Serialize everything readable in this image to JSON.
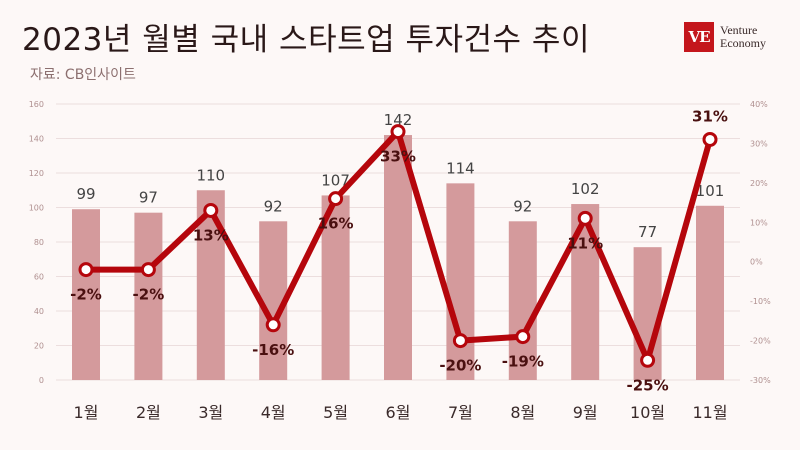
{
  "header": {
    "title": "2023년 월별 국내 스타트업 투자건수 추이",
    "source": "자료: CB인사이트"
  },
  "logo": {
    "mark": "VE",
    "line1": "Venture",
    "line2": "Economy"
  },
  "chart_data": {
    "type": "bar",
    "categories": [
      "1월",
      "2월",
      "3월",
      "4월",
      "5월",
      "6월",
      "7월",
      "8월",
      "9월",
      "10월",
      "11월"
    ],
    "series": [
      {
        "type": "bar",
        "axis": "left",
        "values": [
          99,
          97,
          110,
          92,
          107,
          142,
          114,
          92,
          102,
          77,
          101
        ],
        "labels": [
          "99",
          "97",
          "110",
          "92",
          "107",
          "142",
          "114",
          "92",
          "102",
          "77",
          "101"
        ]
      },
      {
        "type": "line",
        "axis": "right",
        "values": [
          -2,
          -2,
          13,
          -16,
          16,
          33,
          -20,
          -19,
          11,
          -25,
          31
        ],
        "labels": [
          "-2%",
          "-2%",
          "13%",
          "-16%",
          "16%",
          "33%",
          "-20%",
          "-19%",
          "11%",
          "-25%",
          "31%"
        ]
      }
    ],
    "y_left": {
      "ylim": [
        0,
        160
      ],
      "ticks": [
        "0",
        "20",
        "40",
        "60",
        "80",
        "100",
        "120",
        "140",
        "160"
      ]
    },
    "y_right": {
      "ylim": [
        -30,
        40
      ],
      "ticks": [
        "-30%",
        "-20%",
        "-10%",
        "0%",
        "10%",
        "20%",
        "30%",
        "40%"
      ]
    },
    "colors": {
      "bar": "#d49a9c",
      "line": "#b5060c",
      "marker_fill": "#ffffff"
    },
    "grid": true
  }
}
